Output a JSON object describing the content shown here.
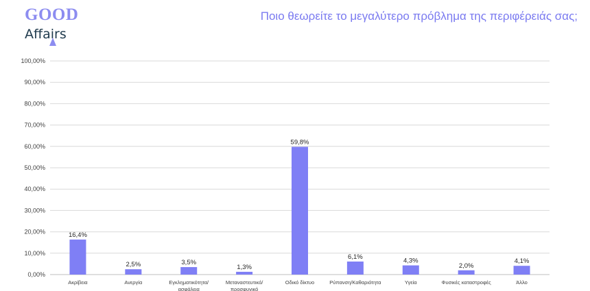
{
  "logo": {
    "line1": "GOOD",
    "line2": "Affairs"
  },
  "colors": {
    "bar": "#7f7ff5",
    "title": "#7a7af0",
    "grid": "#d9d9d9"
  },
  "chart_data": {
    "type": "bar",
    "title": "Ποιο θεωρείτε το μεγαλύτερο πρόβλημα της περιφέρειάς σας;",
    "categories": [
      [
        "Ακρίβεια"
      ],
      [
        "Ανεργία"
      ],
      [
        "Εγκληματικότητα/",
        "ασφάλεια"
      ],
      [
        "Μεταναστευτικό/",
        "προσφυγικό"
      ],
      [
        "Οδικό δίκτυο"
      ],
      [
        "Ρύπανση/Καθαριότητα"
      ],
      [
        "Υγεία"
      ],
      [
        "Φυσικές καταστροφές"
      ],
      [
        "Άλλο"
      ]
    ],
    "values": [
      16.4,
      2.5,
      3.5,
      1.3,
      59.8,
      6.1,
      4.3,
      2.0,
      4.1
    ],
    "data_labels": [
      "16,4%",
      "2,5%",
      "3,5%",
      "1,3%",
      "59,8%",
      "6,1%",
      "4,3%",
      "2,0%",
      "4,1%"
    ],
    "y_ticks": [
      "0,00%",
      "10,00%",
      "20,00%",
      "30,00%",
      "40,00%",
      "50,00%",
      "60,00%",
      "70,00%",
      "80,00%",
      "90,00%",
      "100,00%"
    ],
    "ylim": [
      0,
      100
    ],
    "grid": true,
    "legend": false
  }
}
